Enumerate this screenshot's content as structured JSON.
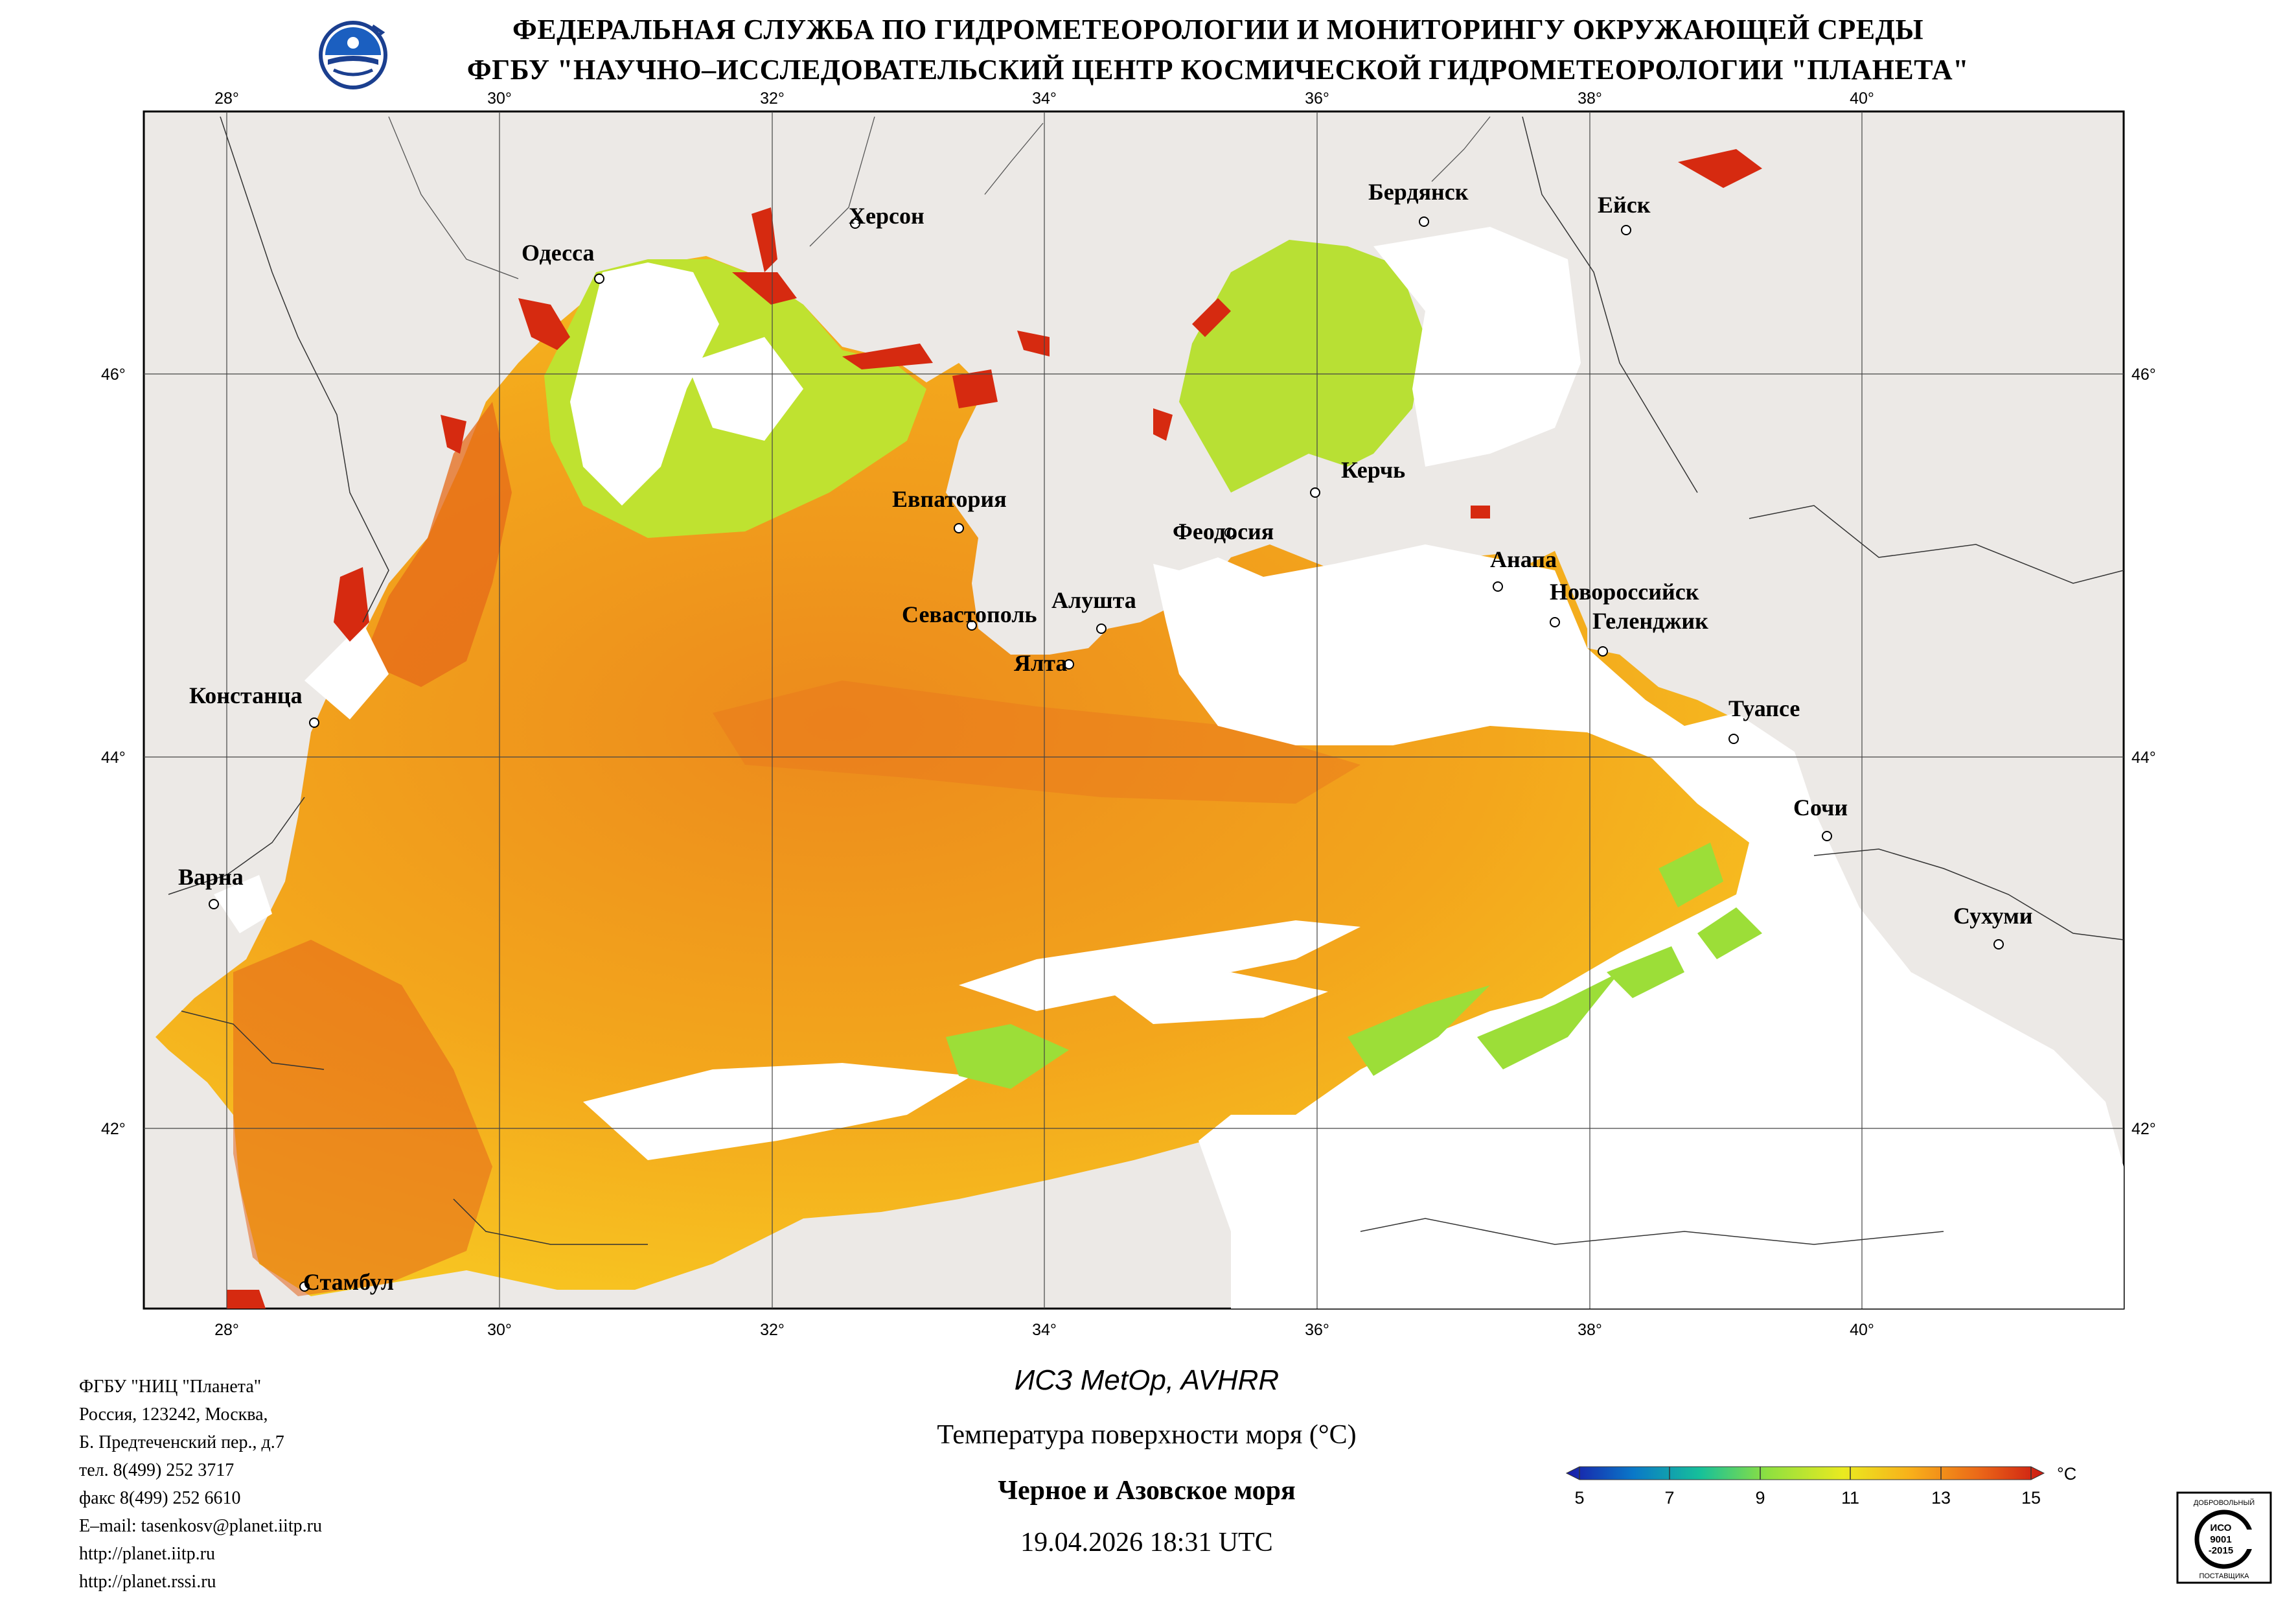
{
  "header": {
    "line1": "ФЕДЕРАЛЬНАЯ СЛУЖБА ПО ГИДРОМЕТЕОРОЛОГИИ И МОНИТОРИНГУ ОКРУЖАЮЩЕЙ СРЕДЫ",
    "line2": "ФГБУ \"НАУЧНО–ИССЛЕДОВАТЕЛЬСКИЙ ЦЕНТР КОСМИЧЕСКОЙ ГИДРОМЕТЕОРОЛОГИИ \"ПЛАНЕТА\""
  },
  "map": {
    "longitude_labels": [
      "28°",
      "30°",
      "32°",
      "34°",
      "36°",
      "38°",
      "40°"
    ],
    "latitude_labels": [
      "46°",
      "44°",
      "42°"
    ],
    "cities": [
      {
        "name": "Одесса"
      },
      {
        "name": "Херсон"
      },
      {
        "name": "Бердянск"
      },
      {
        "name": "Ейск"
      },
      {
        "name": "Евпатория"
      },
      {
        "name": "Керчь"
      },
      {
        "name": "Феодосия"
      },
      {
        "name": "Анапа"
      },
      {
        "name": "Севастополь"
      },
      {
        "name": "Алушта"
      },
      {
        "name": "Новороссийск"
      },
      {
        "name": "Геленджик"
      },
      {
        "name": "Ялта"
      },
      {
        "name": "Констанца"
      },
      {
        "name": "Туапсе"
      },
      {
        "name": "Сочи"
      },
      {
        "name": "Варна"
      },
      {
        "name": "Сухуми"
      },
      {
        "name": "Стамбул"
      }
    ],
    "colors": {
      "land": "#ece9e6",
      "cloud": "#ffffff",
      "sst_cool": "#9cde38",
      "sst_mid": "#f5b71e",
      "sst_warm": "#e9771a",
      "sst_hot": "#d42a10"
    }
  },
  "info": {
    "lines": [
      "ФГБУ \"НИЦ \"Планета\"",
      "Россия, 123242, Москва,",
      "Б. Предтеченский пер., д.7",
      "тел. 8(499) 252 3717",
      "факс 8(499) 252 6610",
      "E–mail: tasenkosv@planet.iitp.ru",
      "http://planet.iitp.ru",
      "http://planet.rssi.ru"
    ]
  },
  "product": {
    "satellite": "ИСЗ MetOp, AVHRR",
    "parameter": "Температура поверхности моря (°C)",
    "region": "Черное и Азовское моря",
    "datetime": "19.04.2026 18:31 UTC"
  },
  "colorbar": {
    "ticks": [
      "5",
      "7",
      "9",
      "11",
      "13",
      "15"
    ],
    "unit": "°C",
    "min": 5,
    "max": 15,
    "colors": [
      "#1a1aa8",
      "#0a78c8",
      "#16c09a",
      "#8ee040",
      "#eaea20",
      "#f8b01a",
      "#ec6a18",
      "#cc1a12"
    ]
  },
  "certificate": {
    "top": "ДОБРОВОЛЬНЫЙ",
    "mid1": "ИСО",
    "mid2": "9001",
    "mid3": "-2015",
    "bottom": "ПОСТАВЩИКА"
  }
}
